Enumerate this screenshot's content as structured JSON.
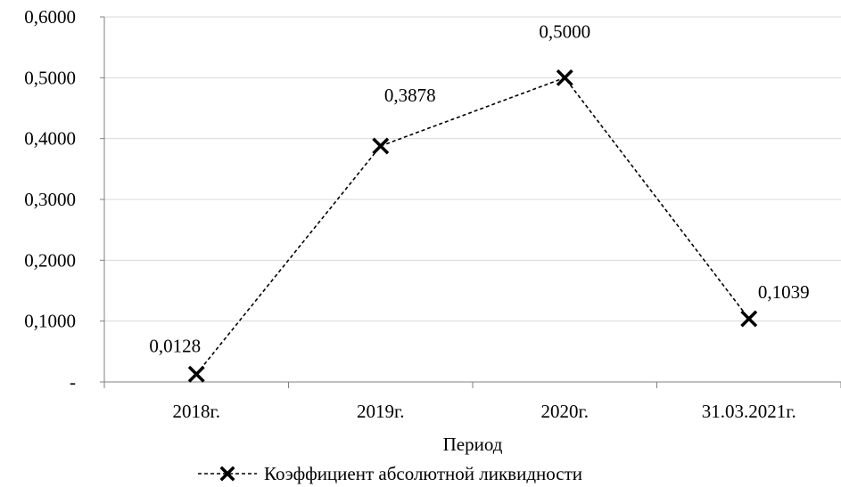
{
  "chart_data": {
    "type": "line",
    "categories": [
      "2018г.",
      "2019г.",
      "2020г.",
      "31.03.2021г."
    ],
    "series": [
      {
        "name": "Коэффициент абсолютной ликвидности",
        "values": [
          0.0128,
          0.3878,
          0.5,
          0.1039
        ]
      }
    ],
    "data_labels": [
      "0,0128",
      "0,3878",
      "0,5000",
      "0,1039"
    ],
    "y_tick_labels": [
      "-",
      "0,1000",
      "0,2000",
      "0,3000",
      "0,4000",
      "0,5000",
      "0,6000"
    ],
    "y_ticks": [
      0,
      0.1,
      0.2,
      0.3,
      0.4,
      0.5,
      0.6
    ],
    "ylim": [
      0,
      0.6
    ],
    "xlabel": "Период",
    "ylabel": "",
    "title": "",
    "grid": true,
    "legend_position": "bottom",
    "line_style": "dashed",
    "marker": "x",
    "colors": {
      "series": "#000000",
      "grid": "#d9d9d9",
      "axis": "#808080"
    }
  }
}
